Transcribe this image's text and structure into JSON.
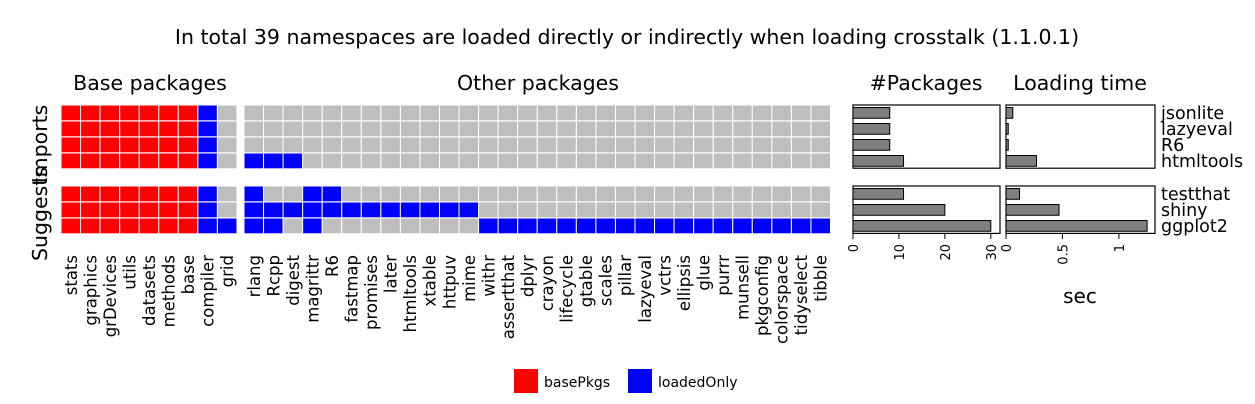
{
  "chart_data": {
    "type": "heatmap",
    "title": "In total 39 namespaces are loaded directly or indirectly when loading crosstalk (1.1.0.1)",
    "facet_labels": {
      "base": "Base packages",
      "other": "Other packages",
      "npkg": "#Packages",
      "time": "Loading time"
    },
    "row_groups": [
      "Imports",
      "Suggests"
    ],
    "dependencies": [
      {
        "name": "jsonlite",
        "group": "Imports",
        "n_packages": 8,
        "load_sec": 0.06
      },
      {
        "name": "lazyeval",
        "group": "Imports",
        "n_packages": 8,
        "load_sec": 0.02
      },
      {
        "name": "R6",
        "group": "Imports",
        "n_packages": 8,
        "load_sec": 0.02
      },
      {
        "name": "htmltools",
        "group": "Imports",
        "n_packages": 11,
        "load_sec": 0.27
      },
      {
        "name": "testthat",
        "group": "Suggests",
        "n_packages": 11,
        "load_sec": 0.12
      },
      {
        "name": "shiny",
        "group": "Suggests",
        "n_packages": 20,
        "load_sec": 0.47
      },
      {
        "name": "ggplot2",
        "group": "Suggests",
        "n_packages": 30,
        "load_sec": 1.25
      }
    ],
    "base_packages": [
      "stats",
      "graphics",
      "grDevices",
      "utils",
      "datasets",
      "methods",
      "base",
      "compiler",
      "grid"
    ],
    "other_packages": [
      "rlang",
      "Rcpp",
      "digest",
      "magrittr",
      "R6",
      "fastmap",
      "promises",
      "later",
      "htmltools",
      "xtable",
      "httpuv",
      "mime",
      "withr",
      "assertthat",
      "dplyr",
      "crayon",
      "lifecycle",
      "gtable",
      "scales",
      "pillar",
      "lazyeval",
      "vctrs",
      "ellipsis",
      "glue",
      "purrr",
      "munsell",
      "pkgconfig",
      "colorspace",
      "tidyselect",
      "tibble"
    ],
    "status": {
      "jsonlite": {
        "basePkgs": [
          "stats",
          "graphics",
          "grDevices",
          "utils",
          "datasets",
          "methods",
          "base"
        ],
        "loadedOnly": [
          "compiler"
        ]
      },
      "lazyeval": {
        "basePkgs": [
          "stats",
          "graphics",
          "grDevices",
          "utils",
          "datasets",
          "methods",
          "base"
        ],
        "loadedOnly": [
          "compiler"
        ]
      },
      "R6": {
        "basePkgs": [
          "stats",
          "graphics",
          "grDevices",
          "utils",
          "datasets",
          "methods",
          "base"
        ],
        "loadedOnly": [
          "compiler"
        ]
      },
      "htmltools": {
        "basePkgs": [
          "stats",
          "graphics",
          "grDevices",
          "utils",
          "datasets",
          "methods",
          "base"
        ],
        "loadedOnly": [
          "compiler",
          "rlang",
          "Rcpp",
          "digest"
        ]
      },
      "testthat": {
        "basePkgs": [
          "stats",
          "graphics",
          "grDevices",
          "utils",
          "datasets",
          "methods",
          "base"
        ],
        "loadedOnly": [
          "compiler",
          "rlang",
          "magrittr",
          "R6"
        ]
      },
      "shiny": {
        "basePkgs": [
          "stats",
          "graphics",
          "grDevices",
          "utils",
          "datasets",
          "methods",
          "base"
        ],
        "loadedOnly": [
          "compiler",
          "rlang",
          "Rcpp",
          "digest",
          "magrittr",
          "R6",
          "fastmap",
          "promises",
          "later",
          "htmltools",
          "xtable",
          "httpuv",
          "mime"
        ]
      },
      "ggplot2": {
        "basePkgs": [
          "stats",
          "graphics",
          "grDevices",
          "utils",
          "datasets",
          "methods",
          "base"
        ],
        "loadedOnly": [
          "compiler",
          "grid",
          "rlang",
          "Rcpp",
          "magrittr",
          "withr",
          "assertthat",
          "dplyr",
          "crayon",
          "lifecycle",
          "gtable",
          "scales",
          "pillar",
          "lazyeval",
          "vctrs",
          "ellipsis",
          "glue",
          "purrr",
          "munsell",
          "pkgconfig",
          "colorspace",
          "tidyselect",
          "tibble"
        ]
      }
    },
    "npkg_axis": {
      "ticks": [
        0,
        10,
        20,
        30
      ],
      "xlim": [
        0,
        32
      ]
    },
    "time_axis": {
      "label": "sec",
      "ticks": [
        0,
        0.5,
        1
      ],
      "tick_labels": [
        "0",
        "0.5",
        "1"
      ],
      "xlim": [
        0,
        1.32
      ]
    },
    "legend": {
      "position": "bottom",
      "items": [
        {
          "key": "basePkgs",
          "label": "basePkgs",
          "color": "#FF0000"
        },
        {
          "key": "loadedOnly",
          "label": "loadedOnly",
          "color": "#0000FF"
        }
      ]
    },
    "colors": {
      "basePkgs": "#FF0000",
      "loadedOnly": "#0000FF",
      "empty": "#BEBEBE",
      "bar": "#7F7F7F"
    }
  }
}
